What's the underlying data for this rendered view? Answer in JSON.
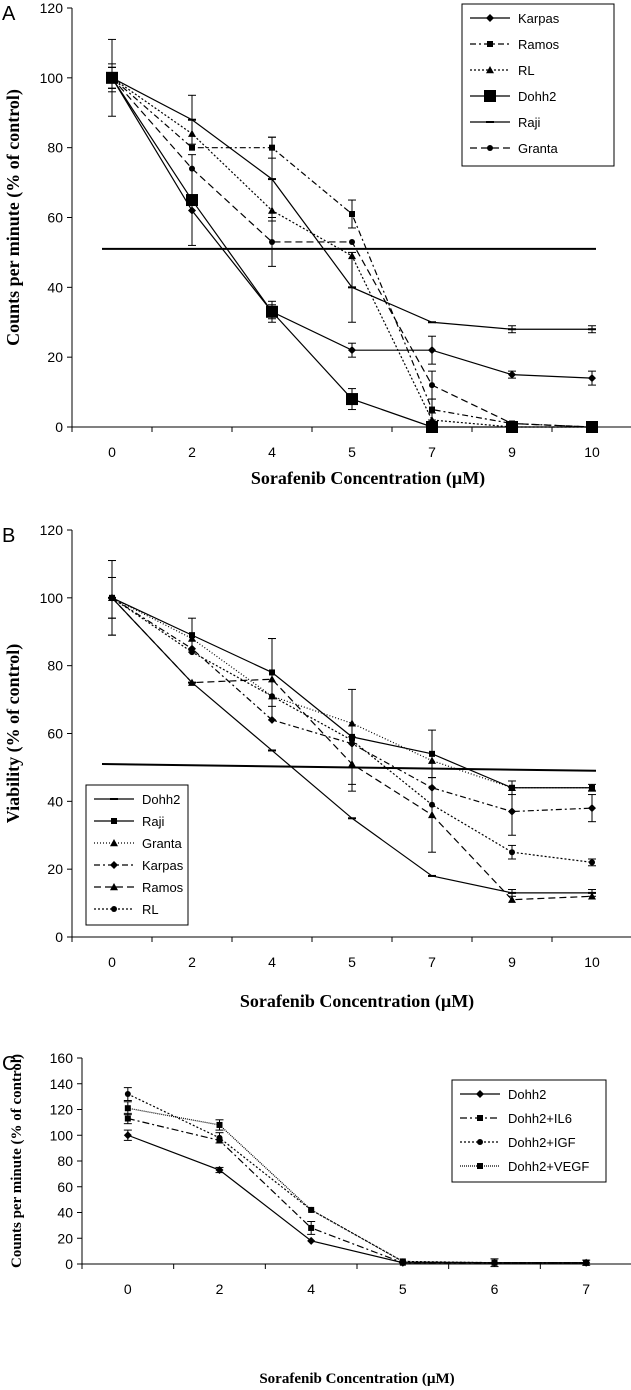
{
  "chart_data": [
    {
      "type": "line",
      "panel_label": "A",
      "title": "",
      "xlabel": "Sorafenib Concentration (µM)",
      "ylabel": "Counts per minute (% of control)",
      "categories": [
        "0",
        "2",
        "4",
        "5",
        "7",
        "9",
        "10"
      ],
      "ylim": [
        0,
        120
      ],
      "yticks": [
        0,
        20,
        40,
        60,
        80,
        100,
        120
      ],
      "grid": false,
      "legend_position": "top-right",
      "reference_line": [
        51,
        51
      ],
      "series": [
        {
          "name": "Karpas",
          "values": [
            100,
            62,
            33,
            22,
            22,
            15,
            14
          ],
          "errors": [
            3,
            0,
            2,
            2,
            4,
            1,
            2
          ],
          "dash": "",
          "marker": "diamond",
          "marker_size": 4
        },
        {
          "name": "Ramos",
          "values": [
            100,
            80,
            80,
            61,
            5,
            1,
            0
          ],
          "errors": [
            3,
            0,
            3,
            4,
            3,
            0,
            0
          ],
          "dash": "6,3,2,3",
          "marker": "square",
          "marker_size": 3
        },
        {
          "name": "RL",
          "values": [
            100,
            84,
            62,
            49,
            2,
            0,
            0
          ],
          "errors": [
            3,
            0,
            0,
            0,
            2,
            0,
            0
          ],
          "dash": "2,2",
          "marker": "triangle",
          "marker_size": 4
        },
        {
          "name": "Dohh2",
          "values": [
            100,
            65,
            33,
            8,
            0,
            0,
            0
          ],
          "errors": [
            4,
            13,
            3,
            3,
            0,
            0,
            0
          ],
          "dash": "",
          "marker": "square",
          "marker_size": 6
        },
        {
          "name": "Raji",
          "values": [
            100,
            88,
            71,
            40,
            30,
            28,
            28
          ],
          "errors": [
            11,
            7,
            12,
            10,
            0,
            1,
            1
          ],
          "dash": "",
          "marker": "dash",
          "marker_size": 4
        },
        {
          "name": "Granta",
          "values": [
            100,
            74,
            53,
            53,
            12,
            1,
            0
          ],
          "errors": [
            0,
            0,
            7,
            0,
            4,
            0,
            0
          ],
          "dash": "7,4",
          "marker": "circle",
          "marker_size": 3
        }
      ]
    },
    {
      "type": "line",
      "panel_label": "B",
      "title": "",
      "xlabel": "Sorafenib Concentration (µM)",
      "ylabel": "Viability (% of control)",
      "categories": [
        "0",
        "2",
        "4",
        "5",
        "7",
        "9",
        "10"
      ],
      "ylim": [
        0,
        120
      ],
      "yticks": [
        0,
        20,
        40,
        60,
        80,
        100,
        120
      ],
      "grid": false,
      "legend_position": "bottom-left",
      "reference_line": [
        51,
        49
      ],
      "series": [
        {
          "name": "Dohh2",
          "values": [
            100,
            75,
            55,
            35,
            18,
            13,
            13
          ],
          "errors": [
            11,
            0,
            0,
            0,
            0,
            1,
            1
          ],
          "dash": "",
          "marker": "dash",
          "marker_size": 4
        },
        {
          "name": "Raji",
          "values": [
            100,
            89,
            78,
            59,
            54,
            44,
            44
          ],
          "errors": [
            11,
            5,
            10,
            14,
            7,
            2,
            1
          ],
          "dash": "",
          "marker": "square",
          "marker_size": 3
        },
        {
          "name": "Granta",
          "values": [
            100,
            88,
            71,
            63,
            52,
            44,
            44
          ],
          "errors": [
            6,
            0,
            0,
            0,
            0,
            0,
            0
          ],
          "dash": "1,2",
          "marker": "triangle",
          "marker_size": 4
        },
        {
          "name": "Karpas",
          "values": [
            100,
            85,
            64,
            57,
            44,
            37,
            38
          ],
          "errors": [
            6,
            0,
            0,
            0,
            0,
            7,
            4
          ],
          "dash": "6,3,2,3",
          "marker": "diamond",
          "marker_size": 4
        },
        {
          "name": "Ramos",
          "values": [
            100,
            75,
            76,
            51,
            36,
            11,
            12
          ],
          "errors": [
            0,
            0,
            12,
            8,
            11,
            0,
            0
          ],
          "dash": "7,4",
          "marker": "triangle",
          "marker_size": 4
        },
        {
          "name": "RL",
          "values": [
            100,
            84,
            71,
            58,
            39,
            25,
            22
          ],
          "errors": [
            0,
            0,
            0,
            0,
            0,
            2,
            1
          ],
          "dash": "2,2",
          "marker": "circle",
          "marker_size": 3
        }
      ]
    },
    {
      "type": "line",
      "panel_label": "C",
      "title": "",
      "xlabel": "Sorafenib Concentration (µM)",
      "ylabel": "Counts per minute (% of control)",
      "categories": [
        "0",
        "2",
        "4",
        "5",
        "6",
        "7"
      ],
      "ylim": [
        0,
        160
      ],
      "yticks": [
        0,
        20,
        40,
        60,
        80,
        100,
        120,
        140,
        160
      ],
      "grid": false,
      "legend_position": "top-right",
      "reference_line": null,
      "series": [
        {
          "name": "Dohh2",
          "values": [
            100,
            73,
            18,
            1,
            1,
            1
          ],
          "errors": [
            4,
            2,
            0,
            0,
            0,
            0
          ],
          "dash": "",
          "marker": "diamond",
          "marker_size": 4
        },
        {
          "name": "Dohh2+IL6",
          "values": [
            113,
            96,
            28,
            1,
            1,
            1
          ],
          "errors": [
            4,
            0,
            5,
            0,
            0,
            0
          ],
          "dash": "7,3,2,3",
          "marker": "square",
          "marker_size": 3
        },
        {
          "name": "Dohh2+IGF",
          "values": [
            132,
            98,
            42,
            2,
            1,
            1
          ],
          "errors": [
            5,
            4,
            0,
            0,
            0,
            0
          ],
          "dash": "2,2",
          "marker": "circle",
          "marker_size": 3
        },
        {
          "name": "Dohh2+VEGF",
          "values": [
            121,
            108,
            42,
            2,
            1,
            1
          ],
          "errors": [
            5,
            4,
            0,
            0,
            3,
            2
          ],
          "dash": "1,1",
          "marker": "square",
          "marker_size": 3
        }
      ]
    }
  ]
}
